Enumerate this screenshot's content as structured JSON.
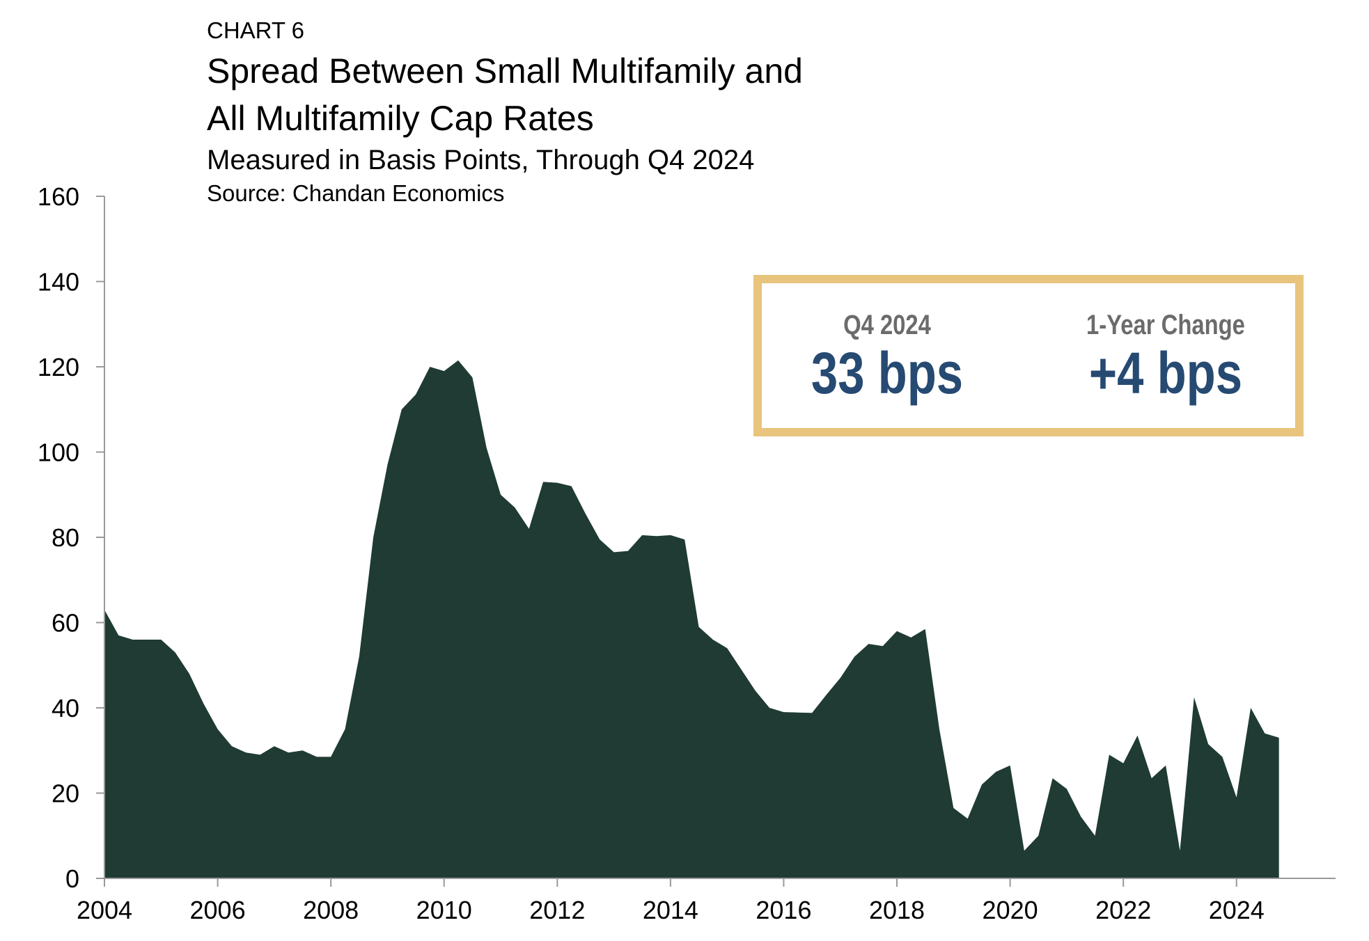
{
  "header": {
    "chart_label": "CHART 6",
    "title_line1": "Spread Between Small Multifamily and",
    "title_line2": "All Multifamily Cap Rates",
    "subtitle": "Measured in Basis Points, Through Q4 2024",
    "source": "Source: Chandan Economics"
  },
  "callout": {
    "left_label": "Q4 2024",
    "left_value": "33 bps",
    "right_label": "1-Year Change",
    "right_value": "+4 bps",
    "border_color": "#E8C47C",
    "value_color": "#264A72"
  },
  "chart_data": {
    "type": "area",
    "title": "Spread Between Small Multifamily and All Multifamily Cap Rates",
    "subtitle": "Measured in Basis Points, Through Q4 2024",
    "fill_color": "#1F3B33",
    "ylim": [
      0,
      160
    ],
    "yticks": [
      0,
      20,
      40,
      60,
      80,
      100,
      120,
      140,
      160
    ],
    "xlim": [
      2004.0,
      2025.75
    ],
    "xticks": [
      2004,
      2006,
      2008,
      2010,
      2012,
      2014,
      2016,
      2018,
      2020,
      2022,
      2024
    ],
    "x": [
      2004.0,
      2004.25,
      2004.5,
      2004.75,
      2005.0,
      2005.25,
      2005.5,
      2005.75,
      2006.0,
      2006.25,
      2006.5,
      2006.75,
      2007.0,
      2007.25,
      2007.5,
      2007.75,
      2008.0,
      2008.25,
      2008.5,
      2008.75,
      2009.0,
      2009.25,
      2009.5,
      2009.75,
      2010.0,
      2010.25,
      2010.5,
      2010.75,
      2011.0,
      2011.25,
      2011.5,
      2011.75,
      2012.0,
      2012.25,
      2012.5,
      2012.75,
      2013.0,
      2013.25,
      2013.5,
      2013.75,
      2014.0,
      2014.25,
      2014.5,
      2014.75,
      2015.0,
      2015.25,
      2015.5,
      2015.75,
      2016.0,
      2016.25,
      2016.5,
      2016.75,
      2017.0,
      2017.25,
      2017.5,
      2017.75,
      2018.0,
      2018.25,
      2018.5,
      2018.75,
      2019.0,
      2019.25,
      2019.5,
      2019.75,
      2020.0,
      2020.25,
      2020.5,
      2020.75,
      2021.0,
      2021.25,
      2021.5,
      2021.75,
      2022.0,
      2022.25,
      2022.5,
      2022.75,
      2023.0,
      2023.25,
      2023.5,
      2023.75,
      2024.0,
      2024.25,
      2024.5,
      2024.75
    ],
    "values": [
      63,
      57,
      56,
      56,
      56,
      53,
      48,
      41,
      35,
      31,
      29.5,
      29,
      31,
      29.5,
      30,
      28.5,
      28.5,
      35,
      52,
      80,
      97,
      110,
      113.5,
      120,
      119,
      121.5,
      117.5,
      101,
      90,
      87,
      82,
      93,
      92.8,
      92,
      85.5,
      79.5,
      76.5,
      76.8,
      80.5,
      80.3,
      80.5,
      79.5,
      59,
      56,
      54,
      49,
      44,
      40,
      39,
      38.9,
      38.8,
      43,
      47,
      52,
      55,
      54.5,
      58,
      56.5,
      58.5,
      35,
      16.5,
      14,
      22,
      25,
      26.5,
      6.5,
      10,
      23.5,
      21,
      14.5,
      10,
      29,
      27,
      33.5,
      23.5,
      26.5,
      6.5,
      42.5,
      31.5,
      28.5,
      19,
      40,
      34,
      33
    ]
  }
}
